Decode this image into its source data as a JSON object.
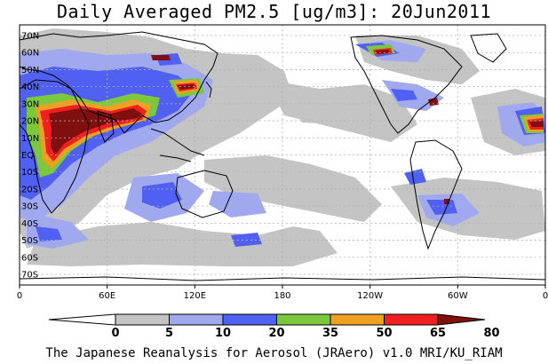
{
  "title": "Daily Averaged PM2.5 [ug/m3]: 20Jun2011",
  "footer": "The Japanese Reanalysis for Aerosol (JRAero) v1.0 MRI/KU_RIAM",
  "lat_ticks": [
    "70N",
    "60N",
    "50N",
    "40N",
    "30N",
    "20N",
    "10N",
    "EQ",
    "10S",
    "20S",
    "30S",
    "40S",
    "50S",
    "60S",
    "70S"
  ],
  "lon_ticks": [
    "0",
    "60E",
    "120E",
    "180",
    "120W",
    "60W",
    "0"
  ],
  "colorbar": {
    "labels": [
      "0",
      "5",
      "10",
      "20",
      "35",
      "50",
      "65",
      "80"
    ],
    "colors": [
      "#ffffff",
      "#c4c4c4",
      "#a0a8f0",
      "#5060f0",
      "#7cc83c",
      "#f0a020",
      "#f02020",
      "#801010"
    ]
  },
  "colors": {
    "land_outline": "#000000",
    "grid": "#b0b0b0",
    "level_5_10": "#c4c4c4",
    "level_10_20": "#a0a8f0",
    "level_20_35": "#5060f0",
    "level_35_50": "#7cc83c",
    "level_50_65": "#f0a020",
    "level_65_80": "#f02020",
    "level_80_plus": "#801010"
  }
}
